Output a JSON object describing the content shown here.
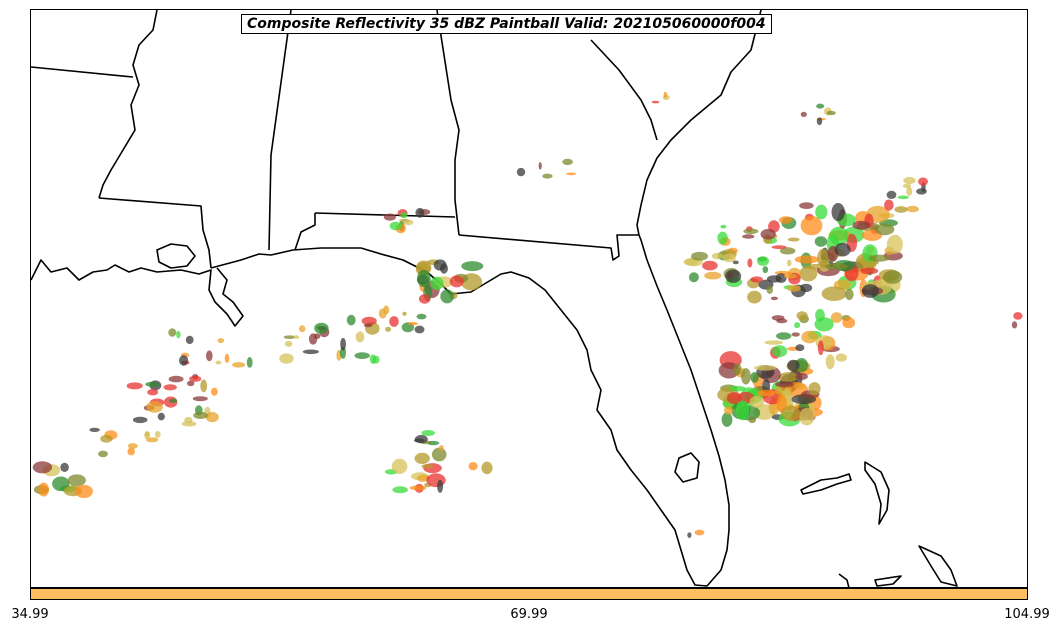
{
  "title": "Composite Reflectivity 35 dBZ Paintball Valid: 202105060000f004",
  "colorbar": {
    "color": "#fdbf5f",
    "tick_labels": [
      "34.99",
      "69.99",
      "104.99"
    ]
  },
  "colors": {
    "member_palette": [
      "#e8332f",
      "#ff8c19",
      "#8b3a3a",
      "#7e8a2c",
      "#2e8b2e",
      "#3adb3a",
      "#e9a32a",
      "#3a3a3a",
      "#b49a2a",
      "#d6c25a"
    ]
  }
}
